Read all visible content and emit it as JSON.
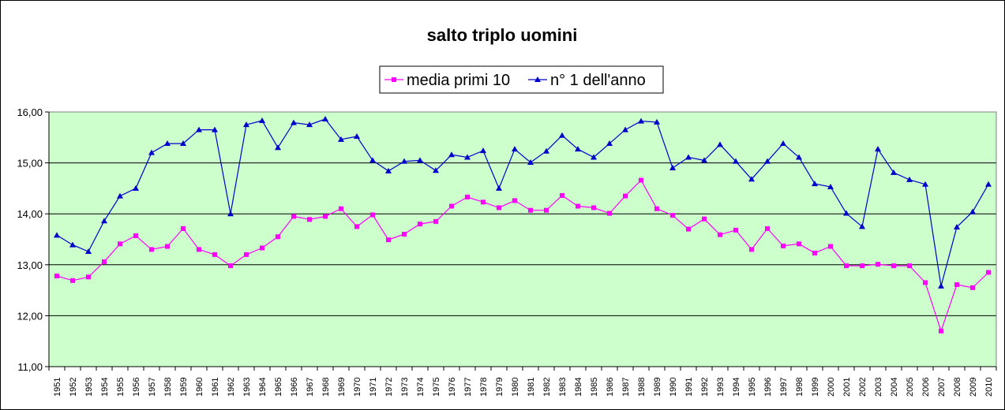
{
  "chart_data": {
    "type": "line",
    "title": "salto triplo uomini",
    "xlabel": "",
    "ylabel": "",
    "ylim": [
      11,
      16
    ],
    "y_ticks": [
      "11,00",
      "12,00",
      "13,00",
      "14,00",
      "15,00",
      "16,00"
    ],
    "grid": true,
    "legend_position": "top",
    "plot_background": "#ccffcc",
    "categories": [
      "1951",
      "1952",
      "1953",
      "1954",
      "1955",
      "1956",
      "1957",
      "1958",
      "1959",
      "1960",
      "1961",
      "1962",
      "1963",
      "1964",
      "1965",
      "1966",
      "1967",
      "1968",
      "1969",
      "1970",
      "1971",
      "1972",
      "1973",
      "1974",
      "1975",
      "1976",
      "1977",
      "1978",
      "1979",
      "1980",
      "1981",
      "1982",
      "1983",
      "1984",
      "1985",
      "1986",
      "1987",
      "1988",
      "1989",
      "1990",
      "1991",
      "1992",
      "1993",
      "1994",
      "1995",
      "1996",
      "1997",
      "1998",
      "1999",
      "2000",
      "2001",
      "2002",
      "2003",
      "2004",
      "2005",
      "2006",
      "2007",
      "2008",
      "2009",
      "2010"
    ],
    "series": [
      {
        "name": "media primi 10",
        "color": "#ff00ff",
        "marker": "square",
        "values": [
          12.78,
          12.69,
          12.76,
          13.06,
          13.41,
          13.57,
          13.3,
          13.36,
          13.71,
          13.3,
          13.2,
          12.98,
          13.2,
          13.33,
          13.55,
          13.95,
          13.89,
          13.95,
          14.1,
          13.75,
          13.98,
          13.49,
          13.6,
          13.8,
          13.85,
          14.15,
          14.33,
          14.23,
          14.12,
          14.26,
          14.07,
          14.07,
          14.36,
          14.15,
          14.12,
          14.01,
          14.35,
          14.66,
          14.1,
          13.97,
          13.7,
          13.9,
          13.59,
          13.68,
          13.3,
          13.71,
          13.37,
          13.41,
          13.23,
          13.36,
          12.98,
          12.98,
          13.01,
          12.98,
          12.98,
          12.65,
          11.7,
          12.61,
          12.55,
          12.85
        ]
      },
      {
        "name": "n° 1 dell'anno",
        "color": "#0000cc",
        "marker": "triangle",
        "values": [
          13.58,
          13.39,
          13.26,
          13.86,
          14.35,
          14.5,
          15.2,
          15.38,
          15.38,
          15.65,
          15.65,
          14.0,
          15.75,
          15.83,
          15.3,
          15.79,
          15.75,
          15.86,
          15.46,
          15.52,
          15.05,
          14.84,
          15.03,
          15.05,
          14.85,
          15.16,
          15.11,
          15.24,
          14.5,
          15.27,
          15.01,
          15.23,
          15.54,
          15.27,
          15.11,
          15.38,
          15.65,
          15.82,
          15.8,
          14.9,
          15.11,
          15.05,
          15.36,
          15.03,
          14.68,
          15.03,
          15.38,
          15.11,
          14.59,
          14.53,
          14.01,
          13.75,
          15.27,
          14.81,
          14.67,
          14.58,
          12.58,
          13.74,
          14.04,
          14.58
        ]
      }
    ]
  }
}
